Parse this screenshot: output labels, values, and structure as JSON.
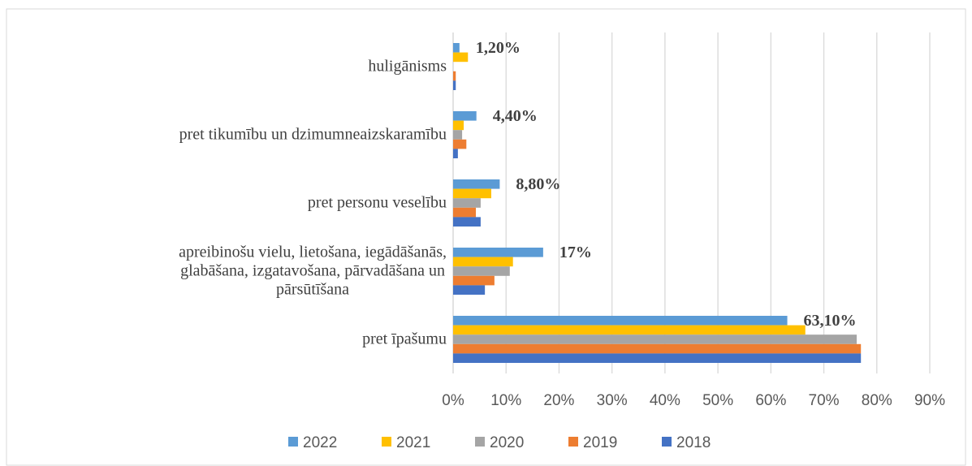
{
  "chart_data": {
    "type": "bar",
    "orientation": "horizontal",
    "categories": [
      "huligānisms",
      "pret tikumību un dzimumneaizskaramību",
      "pret personu veselību",
      "apreibinošu vielu, lietošana, iegādāšanās,\nglabāšana, izgatavošana, pārvadāšana un\npārsūtīšana",
      "pret īpašumu"
    ],
    "series": [
      {
        "name": "2022",
        "color": "#5b9bd5",
        "values": [
          1.2,
          4.4,
          8.8,
          17,
          63.1
        ],
        "value_labels": [
          "1,20%",
          "4,40%",
          "8,80%",
          "17%",
          "63,10%"
        ]
      },
      {
        "name": "2021",
        "color": "#ffc000",
        "values": [
          2.8,
          2.0,
          7.2,
          11.3,
          66.5
        ]
      },
      {
        "name": "2020",
        "color": "#a5a5a5",
        "values": [
          0,
          1.7,
          5.2,
          10.7,
          76.2
        ]
      },
      {
        "name": "2019",
        "color": "#ed7d31",
        "values": [
          0.5,
          2.5,
          4.3,
          7.8,
          77
        ]
      },
      {
        "name": "2018",
        "color": "#4472c4",
        "values": [
          0.5,
          0.9,
          5.2,
          6.0,
          77
        ]
      }
    ],
    "xlim": [
      0,
      90
    ],
    "xticks": [
      {
        "value": 0,
        "label": "0%"
      },
      {
        "value": 10,
        "label": "10%"
      },
      {
        "value": 20,
        "label": "20%"
      },
      {
        "value": 30,
        "label": "30%"
      },
      {
        "value": 40,
        "label": "40%"
      },
      {
        "value": 50,
        "label": "50%"
      },
      {
        "value": 60,
        "label": "60%"
      },
      {
        "value": 70,
        "label": "70%"
      },
      {
        "value": 80,
        "label": "80%"
      },
      {
        "value": 90,
        "label": "90%"
      }
    ],
    "grid": true,
    "legend": "bottom"
  }
}
